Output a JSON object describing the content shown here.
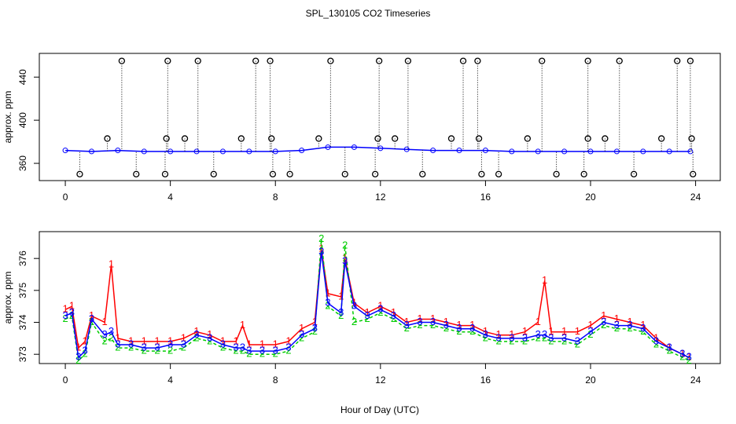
{
  "chart_data": [
    {
      "type": "line",
      "title": "SPL_130105  CO2 Timeseries",
      "y_label": "approx. ppm",
      "xlim": [
        -0.99,
        24.94
      ],
      "xticks": [
        0,
        4,
        8,
        12,
        16,
        20,
        24
      ],
      "ylim": [
        344,
        462
      ],
      "yticks": [
        360,
        400,
        440
      ],
      "series": [
        {
          "color": "#0000ff",
          "marker": "circle",
          "x": [
            0,
            1,
            2,
            3,
            4,
            5,
            6,
            7,
            8,
            9,
            10,
            11,
            12,
            13,
            14,
            15,
            16,
            17,
            18,
            19,
            20,
            21,
            22,
            23,
            23.8
          ],
          "values": [
            372,
            371,
            372,
            371,
            371,
            371,
            371,
            371,
            371,
            372,
            375,
            375,
            374,
            373,
            372,
            372,
            372,
            371,
            371,
            371,
            371,
            371,
            371,
            371,
            371
          ]
        },
        {
          "color": "#000000",
          "marker": "circle-dropline",
          "x": [
            2.15,
            3.9,
            5.05,
            7.25,
            7.8,
            10.1,
            11.95,
            13.05,
            15.15,
            15.7,
            18.15,
            19.9,
            21.1,
            23.3,
            23.8,
            1.6,
            3.85,
            4.55,
            6.7,
            7.85,
            9.65,
            11.9,
            12.55,
            14.7,
            15.75,
            17.6,
            19.9,
            20.55,
            22.7,
            23.85,
            0.55,
            2.7,
            3.8,
            5.65,
            7.9,
            8.55,
            10.65,
            11.8,
            13.6,
            15.85,
            16.5,
            18.7,
            19.75,
            21.65,
            23.9
          ],
          "values": [
            455,
            455,
            455,
            455,
            455,
            455,
            455,
            455,
            455,
            455,
            455,
            455,
            455,
            455,
            455,
            383,
            383,
            383,
            383,
            383,
            383,
            383,
            383,
            383,
            383,
            383,
            383,
            383,
            383,
            383,
            350,
            350,
            350,
            350,
            350,
            350,
            350,
            350,
            350,
            350,
            350,
            350,
            350,
            350,
            350
          ]
        }
      ]
    },
    {
      "type": "line",
      "y_label": "approx. ppm",
      "x_label": "Hour of Day (UTC)",
      "xlim": [
        -0.99,
        24.94
      ],
      "xticks": [
        0,
        4,
        8,
        12,
        16,
        20,
        24
      ],
      "ylim": [
        372.71,
        376.84
      ],
      "yticks": [
        373,
        374,
        375,
        376
      ],
      "x": [
        0,
        0.25,
        0.5,
        0.75,
        1,
        1.5,
        1.75,
        2,
        2.5,
        3,
        3.5,
        4,
        4.5,
        5,
        5.5,
        6,
        6.5,
        6.75,
        7,
        7.5,
        8,
        8.5,
        9,
        9.5,
        9.75,
        10,
        10.5,
        10.65,
        11,
        11.5,
        12,
        12.5,
        13,
        13.5,
        14,
        14.5,
        15,
        15.5,
        16,
        16.5,
        17,
        17.5,
        18,
        18.25,
        18.5,
        19,
        19.5,
        20,
        20.5,
        21,
        21.5,
        22,
        22.5,
        23,
        23.5,
        23.75
      ],
      "series": [
        {
          "name": "1",
          "color": "#ff0000",
          "dash": "none",
          "values": [
            374.4,
            374.5,
            373.2,
            373.4,
            374.2,
            374.0,
            375.8,
            373.5,
            373.4,
            373.4,
            373.4,
            373.4,
            373.5,
            373.7,
            373.6,
            373.4,
            373.4,
            373.9,
            373.3,
            373.3,
            373.3,
            373.4,
            373.8,
            374.0,
            376.3,
            374.9,
            374.8,
            376.0,
            374.6,
            374.3,
            374.5,
            374.3,
            374.0,
            374.1,
            374.1,
            374.0,
            373.9,
            373.9,
            373.7,
            373.6,
            373.6,
            373.7,
            374.0,
            375.3,
            373.7,
            373.7,
            373.7,
            373.9,
            374.2,
            374.1,
            374.0,
            373.9,
            373.5,
            373.2,
            373.0,
            372.9
          ]
        },
        {
          "name": "2",
          "color": "#00cd00",
          "dash": "4 3",
          "values": [
            374.1,
            374.2,
            372.8,
            373.0,
            374.0,
            373.4,
            373.5,
            373.2,
            373.2,
            373.1,
            373.1,
            373.1,
            373.2,
            373.5,
            373.4,
            373.2,
            373.1,
            373.1,
            373.0,
            373.0,
            373.0,
            373.1,
            373.5,
            373.7,
            376.6,
            374.5,
            374.2,
            376.4,
            374.0,
            374.1,
            374.3,
            374.1,
            373.8,
            373.9,
            373.9,
            373.8,
            373.7,
            373.7,
            373.5,
            373.4,
            373.4,
            373.4,
            373.5,
            373.5,
            373.4,
            373.4,
            373.3,
            373.6,
            373.9,
            373.8,
            373.8,
            373.7,
            373.3,
            373.1,
            372.9,
            372.8
          ]
        },
        {
          "name": "3",
          "color": "#0000ff",
          "dash": "none",
          "values": [
            374.2,
            374.3,
            372.9,
            373.1,
            374.1,
            373.6,
            373.7,
            373.3,
            373.3,
            373.2,
            373.2,
            373.3,
            373.3,
            373.6,
            373.5,
            373.3,
            373.2,
            373.2,
            373.1,
            373.1,
            373.1,
            373.2,
            373.6,
            373.8,
            376.2,
            374.6,
            374.3,
            375.9,
            374.5,
            374.2,
            374.4,
            374.2,
            373.9,
            374.0,
            374.0,
            373.9,
            373.8,
            373.8,
            373.6,
            373.5,
            373.5,
            373.5,
            373.6,
            373.6,
            373.5,
            373.5,
            373.4,
            373.7,
            374.0,
            373.9,
            373.9,
            373.8,
            373.4,
            373.2,
            373.0,
            372.9
          ]
        }
      ]
    }
  ]
}
